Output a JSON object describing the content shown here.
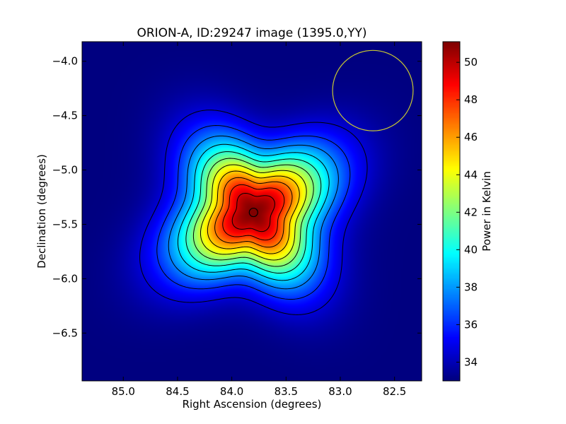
{
  "chart_data": {
    "type": "heatmap",
    "title": "ORION-A, ID:29247 image (1395.0,YY)",
    "xlabel": "Right Ascension (degrees)",
    "ylabel": "Declination (degrees)",
    "colorbar_label": "Power in Kelvin",
    "colormap": "jet",
    "x_inverted": true,
    "xlim": [
      85.38,
      82.25
    ],
    "ylim": [
      -6.94,
      -3.82
    ],
    "x_ticks": [
      85.0,
      84.5,
      84.0,
      83.5,
      83.0,
      82.5
    ],
    "x_tick_labels": [
      "85.0",
      "84.5",
      "84.0",
      "83.5",
      "83.0",
      "82.5"
    ],
    "y_ticks": [
      -4.0,
      -4.5,
      -5.0,
      -5.5,
      -6.0,
      -6.5
    ],
    "y_tick_labels": [
      "−4.0",
      "−4.5",
      "−5.0",
      "−5.5",
      "−6.0",
      "−6.5"
    ],
    "color_range": [
      33.0,
      51.1
    ],
    "colorbar_ticks": [
      34,
      36,
      38,
      40,
      42,
      44,
      46,
      48,
      50
    ],
    "colorbar_tick_labels": [
      "34",
      "36",
      "38",
      "40",
      "42",
      "44",
      "46",
      "48",
      "50"
    ],
    "source": {
      "ra": 83.8,
      "dec": -5.39,
      "peak_kelvin": 51.1,
      "background_kelvin": 33.0
    },
    "contour_count": 11,
    "contour_color": "#000000",
    "beam_circle": {
      "ra": 82.7,
      "dec": -4.27,
      "radius_deg": 0.37,
      "color": "#c8c832"
    },
    "center_marker": {
      "ra": 83.8,
      "dec": -5.39
    }
  }
}
